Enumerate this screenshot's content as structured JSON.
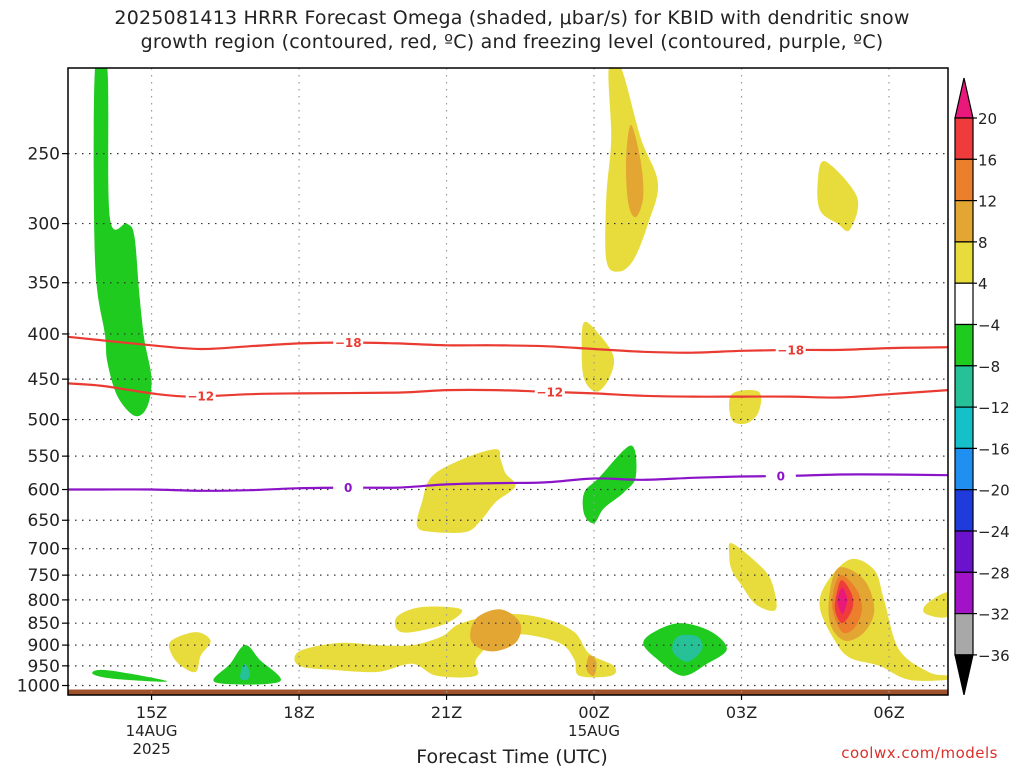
{
  "title": {
    "line1": "2025081413 HRRR Forecast Omega (shaded, μbar/s) for KBID with dendritic snow",
    "line2": "growth region (contoured, red, ºC) and freezing level (contoured, purple, ºC)"
  },
  "credit": "coolwx.com/models",
  "chart_data": {
    "type": "heatmap",
    "xlabel": "Forecast Time (UTC)",
    "y_axis": {
      "log_scale": true,
      "inverted": true,
      "units": "mb",
      "range": [
        200,
        1025
      ],
      "ticks": [
        250,
        300,
        350,
        400,
        450,
        500,
        550,
        600,
        650,
        700,
        750,
        800,
        850,
        900,
        950,
        1000
      ]
    },
    "x_axis": {
      "range": [
        13.3,
        31.2
      ],
      "ticks": [
        {
          "t": 15,
          "label": "15Z",
          "sub": [
            "14AUG",
            "2025"
          ]
        },
        {
          "t": 18,
          "label": "18Z",
          "sub": []
        },
        {
          "t": 21,
          "label": "21Z",
          "sub": []
        },
        {
          "t": 24,
          "label": "00Z",
          "sub": [
            "15AUG"
          ]
        },
        {
          "t": 27,
          "label": "03Z",
          "sub": []
        },
        {
          "t": 30,
          "label": "06Z",
          "sub": []
        }
      ]
    },
    "grid": true,
    "colorbar": {
      "placement": "right",
      "levels": [
        20,
        16,
        12,
        8,
        4,
        -4,
        -8,
        -12,
        -16,
        -20,
        -24,
        -28,
        -32,
        -36
      ],
      "colors": [
        "#e8197a",
        "#ef3b3b",
        "#ec7f2c",
        "#e3a633",
        "#e8dc3c",
        "#ffffff",
        "#1ecb1e",
        "#26c196",
        "#16c0c8",
        "#1f8ff0",
        "#1f3bdc",
        "#6a12cc",
        "#a213c8",
        "#a8a8a8",
        "#000000"
      ]
    },
    "ground_color": "#a0522d",
    "omega_regions": [
      {
        "level": -4,
        "color": "#1ecb1e",
        "points": [
          [
            13.85,
            200
          ],
          [
            14.1,
            200
          ],
          [
            14.15,
            295
          ],
          [
            14.5,
            300
          ],
          [
            14.65,
            310
          ],
          [
            14.75,
            360
          ],
          [
            14.85,
            405
          ],
          [
            15.0,
            450
          ],
          [
            14.9,
            485
          ],
          [
            14.65,
            495
          ],
          [
            14.3,
            470
          ],
          [
            14.1,
            430
          ],
          [
            14.05,
            400
          ],
          [
            13.85,
            330
          ]
        ]
      },
      {
        "level": 4,
        "color": "#e8dc3c",
        "points": [
          [
            24.3,
            200
          ],
          [
            24.55,
            200
          ],
          [
            24.95,
            240
          ],
          [
            25.3,
            270
          ],
          [
            25.1,
            300
          ],
          [
            24.8,
            330
          ],
          [
            24.5,
            340
          ],
          [
            24.25,
            330
          ],
          [
            24.25,
            280
          ],
          [
            24.35,
            240
          ]
        ]
      },
      {
        "level": 8,
        "color": "#e3a633",
        "points": [
          [
            24.75,
            232
          ],
          [
            24.95,
            255
          ],
          [
            25.0,
            280
          ],
          [
            24.85,
            295
          ],
          [
            24.7,
            285
          ],
          [
            24.65,
            255
          ]
        ]
      },
      {
        "level": 4,
        "color": "#e8dc3c",
        "points": [
          [
            28.7,
            255
          ],
          [
            29.35,
            280
          ],
          [
            29.2,
            305
          ],
          [
            28.95,
            300
          ],
          [
            28.6,
            290
          ],
          [
            28.55,
            270
          ]
        ]
      },
      {
        "level": 4,
        "color": "#e8dc3c",
        "points": [
          [
            23.8,
            388
          ],
          [
            24.1,
            400
          ],
          [
            24.4,
            425
          ],
          [
            24.3,
            450
          ],
          [
            24.05,
            465
          ],
          [
            23.8,
            450
          ],
          [
            23.75,
            415
          ]
        ]
      },
      {
        "level": 4,
        "color": "#e8dc3c",
        "points": [
          [
            26.8,
            468
          ],
          [
            27.35,
            465
          ],
          [
            27.35,
            490
          ],
          [
            27.1,
            505
          ],
          [
            26.8,
            500
          ]
        ]
      },
      {
        "level": 4,
        "color": "#e8dc3c",
        "points": [
          [
            22.1,
            555
          ],
          [
            22.0,
            540
          ],
          [
            21.3,
            555
          ],
          [
            20.7,
            580
          ],
          [
            20.5,
            620
          ],
          [
            20.4,
            660
          ],
          [
            20.7,
            670
          ],
          [
            21.4,
            670
          ],
          [
            21.7,
            650
          ],
          [
            22.0,
            620
          ],
          [
            22.4,
            595
          ],
          [
            22.2,
            575
          ]
        ]
      },
      {
        "level": -4,
        "color": "#1ecb1e",
        "points": [
          [
            24.75,
            535
          ],
          [
            24.85,
            580
          ],
          [
            24.6,
            605
          ],
          [
            24.2,
            630
          ],
          [
            24.0,
            655
          ],
          [
            23.8,
            640
          ],
          [
            23.8,
            605
          ],
          [
            24.1,
            582
          ]
        ]
      },
      {
        "level": 4,
        "color": "#e8dc3c",
        "points": [
          [
            26.8,
            690
          ],
          [
            27.3,
            725
          ],
          [
            27.6,
            760
          ],
          [
            27.7,
            820
          ],
          [
            27.3,
            810
          ],
          [
            27.0,
            770
          ],
          [
            26.8,
            740
          ],
          [
            26.75,
            710
          ]
        ]
      },
      {
        "level": 4,
        "color": "#e8dc3c",
        "points": [
          [
            29.2,
            720
          ],
          [
            29.7,
            740
          ],
          [
            29.9,
            800
          ],
          [
            30.2,
            910
          ],
          [
            30.8,
            965
          ],
          [
            31.2,
            975
          ],
          [
            31.2,
            985
          ],
          [
            30.4,
            985
          ],
          [
            29.8,
            950
          ],
          [
            29.2,
            930
          ],
          [
            28.9,
            890
          ],
          [
            28.6,
            820
          ],
          [
            28.7,
            770
          ]
        ]
      },
      {
        "level": 8,
        "color": "#e3a633",
        "points": [
          [
            29.0,
            735
          ],
          [
            29.5,
            760
          ],
          [
            29.7,
            820
          ],
          [
            29.5,
            870
          ],
          [
            29.1,
            890
          ],
          [
            28.8,
            850
          ],
          [
            28.8,
            780
          ]
        ]
      },
      {
        "level": 12,
        "color": "#ec7f2c",
        "points": [
          [
            29.05,
            750
          ],
          [
            29.35,
            780
          ],
          [
            29.45,
            820
          ],
          [
            29.3,
            860
          ],
          [
            29.05,
            870
          ],
          [
            28.85,
            820
          ],
          [
            28.9,
            770
          ]
        ]
      },
      {
        "level": 16,
        "color": "#ef3b3b",
        "points": [
          [
            29.05,
            760
          ],
          [
            29.25,
            790
          ],
          [
            29.25,
            820
          ],
          [
            29.05,
            850
          ],
          [
            28.9,
            820
          ],
          [
            28.95,
            780
          ]
        ]
      },
      {
        "level": 20,
        "color": "#e8197a",
        "points": [
          [
            29.05,
            775
          ],
          [
            29.15,
            800
          ],
          [
            29.05,
            830
          ],
          [
            28.95,
            800
          ]
        ]
      },
      {
        "level": 4,
        "color": "#e8dc3c",
        "points": [
          [
            31.2,
            785
          ],
          [
            31.2,
            835
          ],
          [
            30.75,
            830
          ],
          [
            30.75,
            810
          ]
        ]
      },
      {
        "level": 4,
        "color": "#e8dc3c",
        "points": [
          [
            18.0,
            915
          ],
          [
            18.8,
            895
          ],
          [
            19.6,
            900
          ],
          [
            20.3,
            900
          ],
          [
            20.9,
            880
          ],
          [
            21.3,
            850
          ],
          [
            22.2,
            830
          ],
          [
            23.0,
            840
          ],
          [
            23.6,
            870
          ],
          [
            23.9,
            920
          ],
          [
            24.4,
            950
          ],
          [
            24.35,
            975
          ],
          [
            23.7,
            975
          ],
          [
            23.6,
            935
          ],
          [
            23.3,
            895
          ],
          [
            22.5,
            875
          ],
          [
            22.0,
            890
          ],
          [
            21.6,
            935
          ],
          [
            21.6,
            975
          ],
          [
            20.8,
            975
          ],
          [
            20.3,
            945
          ],
          [
            19.6,
            965
          ],
          [
            18.7,
            960
          ],
          [
            18.0,
            950
          ]
        ]
      },
      {
        "level": 4,
        "color": "#e8dc3c",
        "points": [
          [
            20.0,
            835
          ],
          [
            20.5,
            815
          ],
          [
            21.3,
            820
          ],
          [
            21.0,
            850
          ],
          [
            20.3,
            870
          ],
          [
            20.0,
            865
          ]
        ]
      },
      {
        "level": 8,
        "color": "#e3a633",
        "points": [
          [
            21.6,
            840
          ],
          [
            22.1,
            820
          ],
          [
            22.5,
            850
          ],
          [
            22.4,
            895
          ],
          [
            21.9,
            915
          ],
          [
            21.5,
            890
          ]
        ]
      },
      {
        "level": 8,
        "color": "#e3a633",
        "points": [
          [
            23.9,
            925
          ],
          [
            24.05,
            940
          ],
          [
            24.0,
            975
          ],
          [
            23.85,
            960
          ]
        ]
      },
      {
        "level": -4,
        "color": "#1ecb1e",
        "points": [
          [
            25.3,
            865
          ],
          [
            25.8,
            850
          ],
          [
            26.4,
            870
          ],
          [
            26.7,
            910
          ],
          [
            26.3,
            945
          ],
          [
            25.8,
            975
          ],
          [
            25.3,
            935
          ],
          [
            25.0,
            895
          ]
        ]
      },
      {
        "level": -8,
        "color": "#26c196",
        "points": [
          [
            25.7,
            880
          ],
          [
            26.1,
            880
          ],
          [
            26.2,
            910
          ],
          [
            25.9,
            940
          ],
          [
            25.6,
            915
          ]
        ]
      },
      {
        "level": 4,
        "color": "#e8dc3c",
        "points": [
          [
            15.4,
            890
          ],
          [
            15.9,
            870
          ],
          [
            16.2,
            890
          ],
          [
            16.0,
            925
          ],
          [
            15.9,
            965
          ],
          [
            15.6,
            950
          ],
          [
            15.4,
            920
          ]
        ]
      },
      {
        "level": -4,
        "color": "#1ecb1e",
        "points": [
          [
            16.9,
            900
          ],
          [
            17.2,
            935
          ],
          [
            17.6,
            990
          ],
          [
            16.3,
            992
          ],
          [
            16.6,
            945
          ]
        ]
      },
      {
        "level": -8,
        "color": "#26c196",
        "points": [
          [
            16.88,
            945
          ],
          [
            17.0,
            965
          ],
          [
            16.95,
            985
          ],
          [
            16.8,
            980
          ]
        ]
      },
      {
        "level": -4,
        "color": "#1ecb1e",
        "points": [
          [
            14.0,
            960
          ],
          [
            14.8,
            975
          ],
          [
            15.3,
            990
          ],
          [
            14.2,
            982
          ],
          [
            13.8,
            970
          ]
        ]
      }
    ],
    "contours": [
      {
        "name": "-18",
        "value": -18,
        "color": "#ea3b33",
        "label_t": [
          19.0,
          28.0
        ],
        "points": [
          [
            13.3,
            403
          ],
          [
            15,
            412
          ],
          [
            16,
            416
          ],
          [
            17,
            413
          ],
          [
            18,
            410
          ],
          [
            19,
            409
          ],
          [
            20,
            410
          ],
          [
            21,
            412
          ],
          [
            22,
            412
          ],
          [
            23,
            413
          ],
          [
            24,
            416
          ],
          [
            25,
            419
          ],
          [
            26,
            420
          ],
          [
            27,
            418
          ],
          [
            28,
            417
          ],
          [
            29,
            417
          ],
          [
            30,
            415
          ],
          [
            31.2,
            414
          ]
        ]
      },
      {
        "name": "-12",
        "value": -12,
        "color": "#ea3b33",
        "label_t": [
          16.0,
          23.1
        ],
        "points": [
          [
            13.3,
            455
          ],
          [
            14,
            458
          ],
          [
            15,
            467
          ],
          [
            15.8,
            471
          ],
          [
            17,
            468
          ],
          [
            18,
            467
          ],
          [
            20,
            466
          ],
          [
            21,
            463
          ],
          [
            22,
            463
          ],
          [
            23,
            465
          ],
          [
            24,
            467
          ],
          [
            25,
            470
          ],
          [
            26,
            471
          ],
          [
            27,
            471
          ],
          [
            28,
            471
          ],
          [
            29,
            472
          ],
          [
            30,
            468
          ],
          [
            31.2,
            463
          ]
        ]
      },
      {
        "name": "0",
        "value": 0,
        "color": "#8c14c8",
        "label_t": [
          19.0,
          27.8
        ],
        "points": [
          [
            13.3,
            600
          ],
          [
            14,
            600
          ],
          [
            15,
            600
          ],
          [
            16,
            602
          ],
          [
            17,
            601
          ],
          [
            18,
            598
          ],
          [
            19,
            597
          ],
          [
            20,
            597
          ],
          [
            21,
            592
          ],
          [
            22,
            590
          ],
          [
            23,
            589
          ],
          [
            24,
            583
          ],
          [
            25,
            585
          ],
          [
            26,
            582
          ],
          [
            27,
            580
          ],
          [
            28,
            579
          ],
          [
            29,
            577
          ],
          [
            30,
            577
          ],
          [
            31.2,
            578
          ]
        ]
      }
    ]
  }
}
